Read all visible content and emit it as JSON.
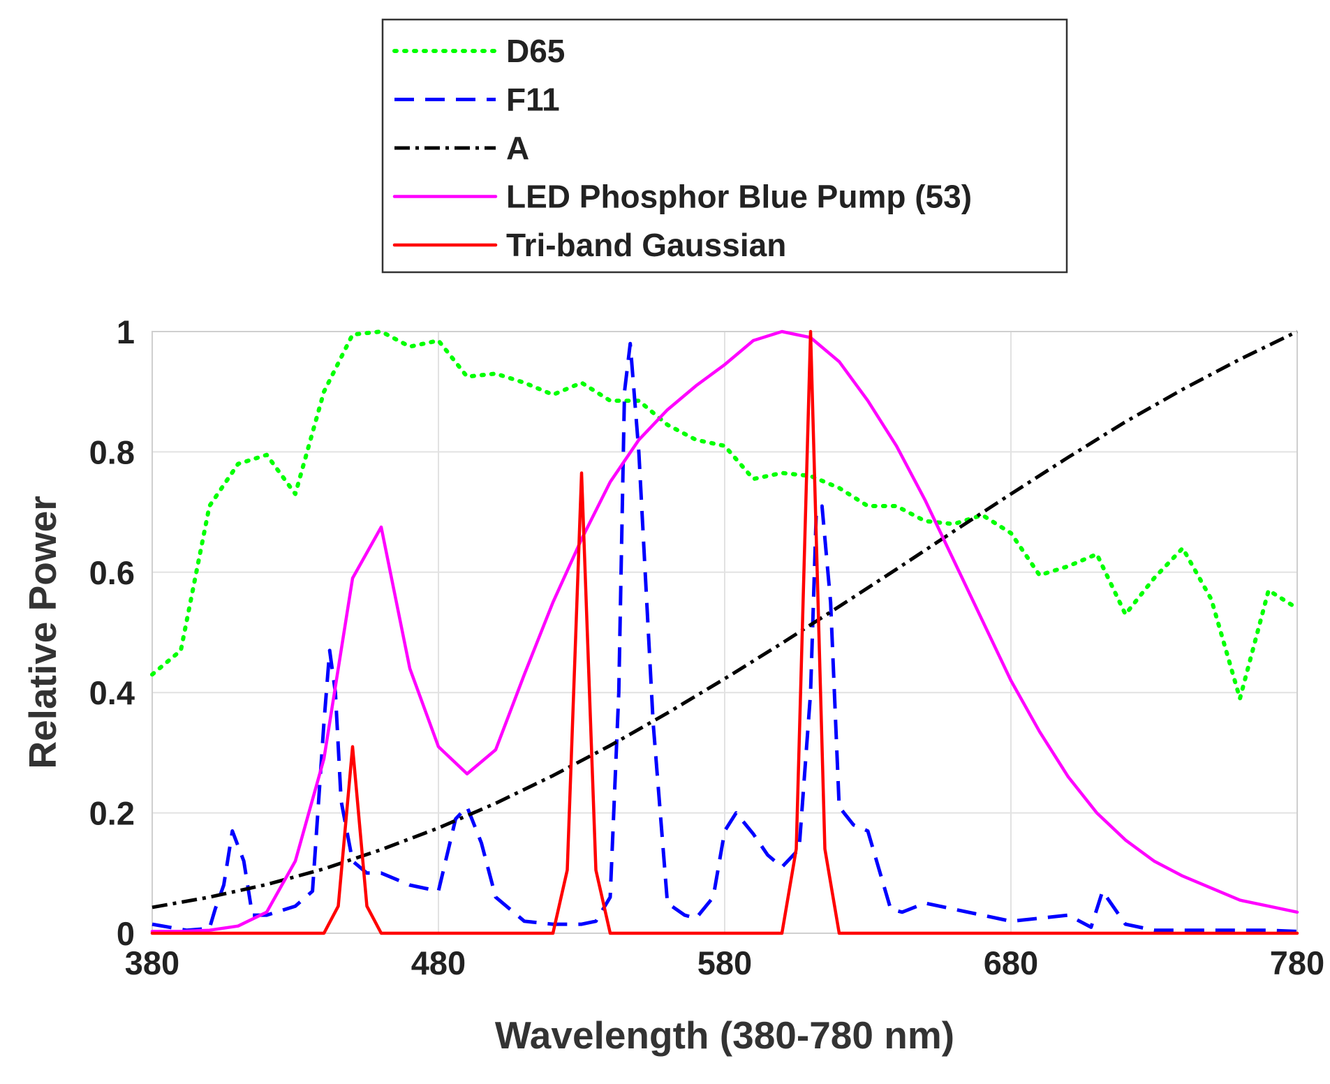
{
  "chart_data": {
    "type": "line",
    "title": "",
    "xlabel": "Wavelength (380-780 nm)",
    "ylabel": "Relative Power",
    "xlim": [
      380,
      780
    ],
    "ylim": [
      0,
      1
    ],
    "xticks": [
      380,
      480,
      580,
      680,
      780
    ],
    "yticks": [
      0,
      0.2,
      0.4,
      0.6,
      0.8,
      1
    ],
    "xtick_labels": [
      "380",
      "480",
      "580",
      "680",
      "780"
    ],
    "ytick_labels": [
      "0",
      "0.2",
      "0.4",
      "0.6",
      "0.8",
      "1"
    ],
    "grid": true,
    "legend_position": "top-center outside",
    "series": [
      {
        "name": "D65",
        "color": "#00ff00",
        "dash": "dotted",
        "x": [
          380,
          390,
          400,
          410,
          420,
          430,
          440,
          450,
          460,
          470,
          480,
          490,
          500,
          510,
          520,
          530,
          540,
          550,
          560,
          570,
          580,
          590,
          600,
          610,
          620,
          630,
          640,
          650,
          660,
          670,
          680,
          690,
          700,
          710,
          720,
          730,
          740,
          750,
          760,
          770,
          780
        ],
        "y": [
          0.43,
          0.47,
          0.71,
          0.78,
          0.795,
          0.73,
          0.9,
          0.995,
          1.0,
          0.975,
          0.985,
          0.925,
          0.93,
          0.915,
          0.895,
          0.915,
          0.885,
          0.885,
          0.845,
          0.82,
          0.81,
          0.755,
          0.765,
          0.76,
          0.74,
          0.71,
          0.71,
          0.685,
          0.68,
          0.695,
          0.665,
          0.595,
          0.61,
          0.63,
          0.53,
          0.59,
          0.64,
          0.555,
          0.39,
          0.57,
          0.54
        ]
      },
      {
        "name": "F11",
        "color": "#0000ff",
        "dash": "dashed",
        "x": [
          380,
          392,
          400,
          402,
          405,
          408,
          412,
          415,
          420,
          430,
          436,
          440,
          442,
          444,
          446,
          450,
          455,
          460,
          470,
          480,
          486,
          490,
          495,
          500,
          510,
          520,
          525,
          530,
          535,
          540,
          543,
          545,
          547,
          550,
          555,
          560,
          566,
          570,
          576,
          580,
          584,
          590,
          595,
          600,
          606,
          610,
          612,
          614,
          617,
          620,
          625,
          630,
          638,
          642,
          650,
          660,
          670,
          680,
          690,
          700,
          708,
          712,
          720,
          730,
          740,
          750,
          760,
          770,
          780
        ],
        "y": [
          0.015,
          0.005,
          0.008,
          0.04,
          0.08,
          0.17,
          0.12,
          0.03,
          0.03,
          0.045,
          0.07,
          0.35,
          0.47,
          0.4,
          0.22,
          0.12,
          0.1,
          0.1,
          0.08,
          0.07,
          0.19,
          0.21,
          0.15,
          0.06,
          0.02,
          0.015,
          0.015,
          0.015,
          0.02,
          0.06,
          0.4,
          0.9,
          0.98,
          0.8,
          0.35,
          0.05,
          0.03,
          0.025,
          0.06,
          0.17,
          0.2,
          0.165,
          0.13,
          0.11,
          0.14,
          0.4,
          0.7,
          0.71,
          0.55,
          0.21,
          0.18,
          0.17,
          0.04,
          0.035,
          0.05,
          0.04,
          0.03,
          0.02,
          0.025,
          0.03,
          0.01,
          0.07,
          0.015,
          0.005,
          0.005,
          0.005,
          0.005,
          0.005,
          0.003
        ]
      },
      {
        "name": "A",
        "color": "#000000",
        "dash": "dashdot",
        "x": [
          380,
          400,
          420,
          440,
          460,
          480,
          500,
          520,
          540,
          560,
          580,
          600,
          620,
          640,
          660,
          680,
          700,
          720,
          740,
          760,
          780
        ],
        "y": [
          0.043,
          0.06,
          0.081,
          0.107,
          0.139,
          0.175,
          0.216,
          0.262,
          0.312,
          0.366,
          0.423,
          0.482,
          0.543,
          0.605,
          0.668,
          0.73,
          0.791,
          0.85,
          0.904,
          0.954,
          1.0
        ]
      },
      {
        "name": "LED Phosphor Blue Pump (53)",
        "color": "#ff00ff",
        "dash": "solid",
        "x": [
          380,
          390,
          400,
          410,
          420,
          430,
          440,
          450,
          460,
          470,
          480,
          490,
          500,
          510,
          520,
          530,
          540,
          550,
          560,
          570,
          580,
          590,
          600,
          610,
          620,
          630,
          640,
          650,
          660,
          670,
          680,
          690,
          700,
          710,
          720,
          730,
          740,
          750,
          760,
          770,
          780
        ],
        "y": [
          0.003,
          0.003,
          0.005,
          0.012,
          0.035,
          0.12,
          0.29,
          0.59,
          0.675,
          0.44,
          0.31,
          0.265,
          0.305,
          0.43,
          0.55,
          0.655,
          0.75,
          0.82,
          0.87,
          0.91,
          0.945,
          0.985,
          1.0,
          0.99,
          0.95,
          0.885,
          0.81,
          0.72,
          0.62,
          0.52,
          0.42,
          0.335,
          0.26,
          0.2,
          0.155,
          0.12,
          0.095,
          0.075,
          0.055,
          0.045,
          0.035
        ]
      },
      {
        "name": "Tri-band Gaussian",
        "color": "#ff0000",
        "dash": "solid",
        "x": [
          380,
          440,
          445,
          450,
          455,
          460,
          520,
          525,
          530,
          535,
          540,
          600,
          605,
          610,
          615,
          620,
          780
        ],
        "y": [
          0,
          0,
          0.045,
          0.31,
          0.045,
          0,
          0,
          0.105,
          0.765,
          0.105,
          0,
          0,
          0.14,
          1.0,
          0.14,
          0,
          0
        ]
      }
    ]
  }
}
